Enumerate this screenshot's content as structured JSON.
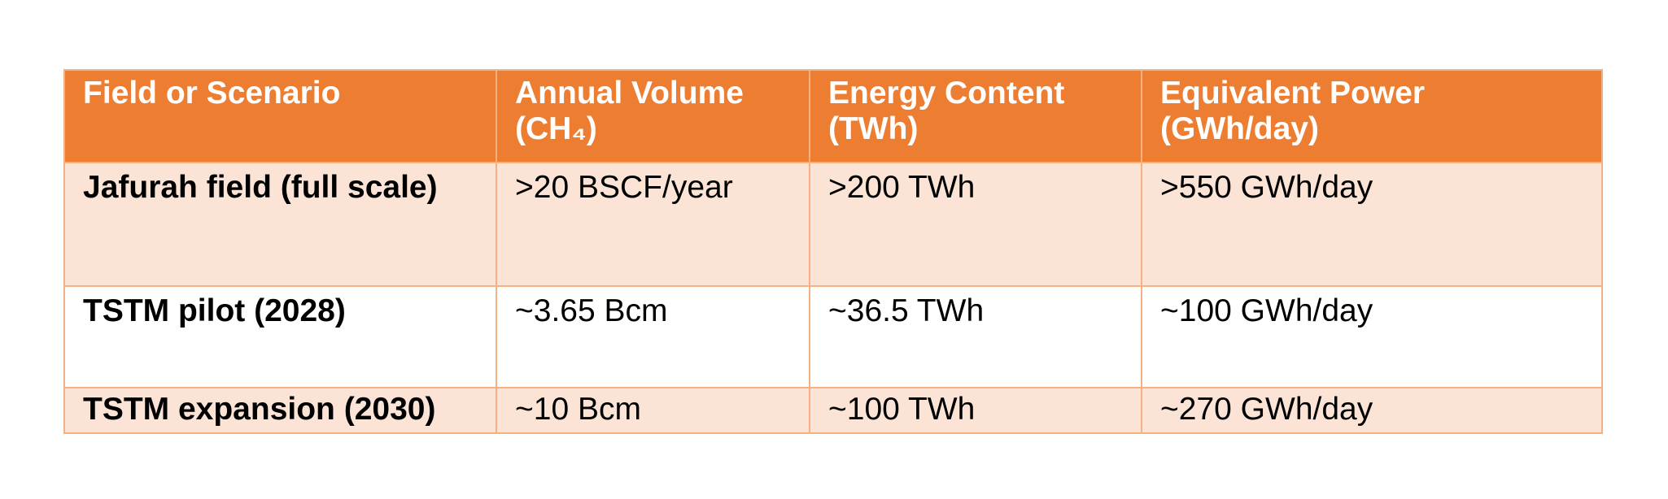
{
  "table": {
    "headers": [
      {
        "line1": "Field or Scenario",
        "line2": ""
      },
      {
        "line1": "Annual Volume",
        "line2": "(CH₄)"
      },
      {
        "line1": "Energy Content",
        "line2": "(TWh)"
      },
      {
        "line1": "Equivalent Power",
        "line2": "(GWh/day)"
      }
    ],
    "rows": [
      [
        "Jafurah field (full scale)",
        ">20 BSCF/year",
        ">200 TWh",
        ">550 GWh/day"
      ],
      [
        "TSTM pilot (2028)",
        "~3.65 Bcm",
        "~36.5 TWh",
        "~100 GWh/day"
      ],
      [
        "TSTM expansion (2030)",
        "~10 Bcm",
        "~100 TWh",
        "~270 GWh/day"
      ]
    ]
  },
  "colors": {
    "header_bg": "#ed7d31",
    "header_text": "#ffffff",
    "shaded_row_bg": "#fbe4d5",
    "border": "#f4b183"
  }
}
